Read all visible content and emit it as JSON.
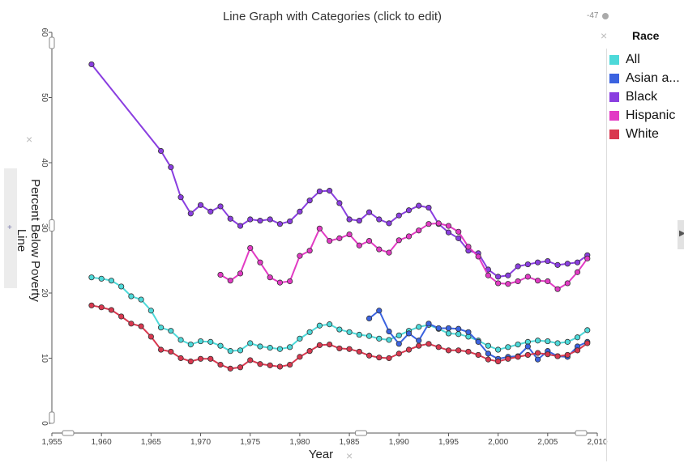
{
  "title": "Line Graph with Categories (click to edit)",
  "corner_value": "-47",
  "close_glyph": "×",
  "expand_glyph": "+",
  "right_arrow_glyph": "▶",
  "legend": {
    "title": "Race",
    "items": [
      {
        "label": "All",
        "color": "#4dd9d9"
      },
      {
        "label": "Asian a...",
        "color": "#3b63e0"
      },
      {
        "label": "Black",
        "color": "#8a3ee0"
      },
      {
        "label": "Hispanic",
        "color": "#e23bc4"
      },
      {
        "label": "White",
        "color": "#d9384f"
      }
    ]
  },
  "chart_data": {
    "type": "line",
    "title": "Line Graph with Categories (click to edit)",
    "xlabel": "Year",
    "ylabel": "Percent Below Poverty Line",
    "xlim": [
      1955,
      2010
    ],
    "ylim": [
      0,
      60
    ],
    "x_ticks": [
      "1,955",
      "1,960",
      "1,965",
      "1,970",
      "1,975",
      "1,980",
      "1,985",
      "1,990",
      "1,995",
      "2,000",
      "2,005",
      "2,010"
    ],
    "y_ticks": [
      "0",
      "10",
      "20",
      "30",
      "40",
      "50",
      "60"
    ],
    "legend_position": "right",
    "series": [
      {
        "name": "All",
        "color": "#4dd9d9",
        "points": [
          [
            1959,
            22.4
          ],
          [
            1960,
            22.2
          ],
          [
            1961,
            21.9
          ],
          [
            1962,
            21.0
          ],
          [
            1963,
            19.5
          ],
          [
            1964,
            19.0
          ],
          [
            1965,
            17.3
          ],
          [
            1966,
            14.7
          ],
          [
            1967,
            14.2
          ],
          [
            1968,
            12.8
          ],
          [
            1969,
            12.1
          ],
          [
            1970,
            12.6
          ],
          [
            1971,
            12.5
          ],
          [
            1972,
            11.9
          ],
          [
            1973,
            11.1
          ],
          [
            1974,
            11.2
          ],
          [
            1975,
            12.3
          ],
          [
            1976,
            11.8
          ],
          [
            1977,
            11.6
          ],
          [
            1978,
            11.4
          ],
          [
            1979,
            11.7
          ],
          [
            1980,
            13.0
          ],
          [
            1981,
            14.0
          ],
          [
            1982,
            15.0
          ],
          [
            1983,
            15.2
          ],
          [
            1984,
            14.4
          ],
          [
            1985,
            14.0
          ],
          [
            1986,
            13.6
          ],
          [
            1987,
            13.4
          ],
          [
            1988,
            13.0
          ],
          [
            1989,
            12.8
          ],
          [
            1990,
            13.5
          ],
          [
            1991,
            14.2
          ],
          [
            1992,
            14.8
          ],
          [
            1993,
            15.1
          ],
          [
            1994,
            14.5
          ],
          [
            1995,
            13.8
          ],
          [
            1996,
            13.7
          ],
          [
            1997,
            13.3
          ],
          [
            1998,
            12.7
          ],
          [
            1999,
            11.9
          ],
          [
            2000,
            11.3
          ],
          [
            2001,
            11.7
          ],
          [
            2002,
            12.1
          ],
          [
            2003,
            12.5
          ],
          [
            2004,
            12.7
          ],
          [
            2005,
            12.6
          ],
          [
            2006,
            12.3
          ],
          [
            2007,
            12.5
          ],
          [
            2008,
            13.2
          ],
          [
            2009,
            14.3
          ]
        ]
      },
      {
        "name": "Asian a...",
        "color": "#3b63e0",
        "points": [
          [
            1987,
            16.1
          ],
          [
            1988,
            17.3
          ],
          [
            1989,
            14.1
          ],
          [
            1990,
            12.2
          ],
          [
            1991,
            13.8
          ],
          [
            1992,
            12.7
          ],
          [
            1993,
            15.3
          ],
          [
            1994,
            14.6
          ],
          [
            1995,
            14.6
          ],
          [
            1996,
            14.5
          ],
          [
            1997,
            14.0
          ],
          [
            1998,
            12.5
          ],
          [
            1999,
            10.7
          ],
          [
            2000,
            9.9
          ],
          [
            2001,
            10.2
          ],
          [
            2002,
            10.3
          ],
          [
            2003,
            11.8
          ],
          [
            2004,
            9.8
          ],
          [
            2005,
            11.1
          ],
          [
            2006,
            10.3
          ],
          [
            2007,
            10.2
          ],
          [
            2008,
            11.8
          ],
          [
            2009,
            12.5
          ]
        ]
      },
      {
        "name": "Black",
        "color": "#8a3ee0",
        "points": [
          [
            1959,
            55.1
          ],
          [
            1966,
            41.8
          ],
          [
            1967,
            39.3
          ],
          [
            1968,
            34.7
          ],
          [
            1969,
            32.2
          ],
          [
            1970,
            33.5
          ],
          [
            1971,
            32.5
          ],
          [
            1972,
            33.3
          ],
          [
            1973,
            31.4
          ],
          [
            1974,
            30.3
          ],
          [
            1975,
            31.3
          ],
          [
            1976,
            31.1
          ],
          [
            1977,
            31.3
          ],
          [
            1978,
            30.6
          ],
          [
            1979,
            31.0
          ],
          [
            1980,
            32.5
          ],
          [
            1981,
            34.2
          ],
          [
            1982,
            35.6
          ],
          [
            1983,
            35.7
          ],
          [
            1984,
            33.8
          ],
          [
            1985,
            31.3
          ],
          [
            1986,
            31.1
          ],
          [
            1987,
            32.4
          ],
          [
            1988,
            31.3
          ],
          [
            1989,
            30.7
          ],
          [
            1990,
            31.9
          ],
          [
            1991,
            32.7
          ],
          [
            1992,
            33.4
          ],
          [
            1993,
            33.1
          ],
          [
            1994,
            30.6
          ],
          [
            1995,
            29.3
          ],
          [
            1996,
            28.4
          ],
          [
            1997,
            26.5
          ],
          [
            1998,
            26.1
          ],
          [
            1999,
            23.6
          ],
          [
            2000,
            22.5
          ],
          [
            2001,
            22.7
          ],
          [
            2002,
            24.1
          ],
          [
            2003,
            24.4
          ],
          [
            2004,
            24.7
          ],
          [
            2005,
            24.9
          ],
          [
            2006,
            24.3
          ],
          [
            2007,
            24.5
          ],
          [
            2008,
            24.7
          ],
          [
            2009,
            25.8
          ]
        ]
      },
      {
        "name": "Hispanic",
        "color": "#e23bc4",
        "points": [
          [
            1972,
            22.8
          ],
          [
            1973,
            21.9
          ],
          [
            1974,
            23.0
          ],
          [
            1975,
            26.9
          ],
          [
            1976,
            24.7
          ],
          [
            1977,
            22.4
          ],
          [
            1978,
            21.6
          ],
          [
            1979,
            21.8
          ],
          [
            1980,
            25.7
          ],
          [
            1981,
            26.5
          ],
          [
            1982,
            29.9
          ],
          [
            1983,
            28.0
          ],
          [
            1984,
            28.4
          ],
          [
            1985,
            29.0
          ],
          [
            1986,
            27.3
          ],
          [
            1987,
            28.0
          ],
          [
            1988,
            26.7
          ],
          [
            1989,
            26.2
          ],
          [
            1990,
            28.1
          ],
          [
            1991,
            28.7
          ],
          [
            1992,
            29.6
          ],
          [
            1993,
            30.6
          ],
          [
            1994,
            30.7
          ],
          [
            1995,
            30.3
          ],
          [
            1996,
            29.4
          ],
          [
            1997,
            27.1
          ],
          [
            1998,
            25.6
          ],
          [
            1999,
            22.7
          ],
          [
            2000,
            21.5
          ],
          [
            2001,
            21.4
          ],
          [
            2002,
            21.8
          ],
          [
            2003,
            22.5
          ],
          [
            2004,
            21.9
          ],
          [
            2005,
            21.8
          ],
          [
            2006,
            20.6
          ],
          [
            2007,
            21.5
          ],
          [
            2008,
            23.2
          ],
          [
            2009,
            25.3
          ]
        ]
      },
      {
        "name": "White",
        "color": "#d9384f",
        "points": [
          [
            1959,
            18.1
          ],
          [
            1960,
            17.8
          ],
          [
            1961,
            17.4
          ],
          [
            1962,
            16.4
          ],
          [
            1963,
            15.3
          ],
          [
            1964,
            14.9
          ],
          [
            1965,
            13.3
          ],
          [
            1966,
            11.3
          ],
          [
            1967,
            11.0
          ],
          [
            1968,
            10.0
          ],
          [
            1969,
            9.5
          ],
          [
            1970,
            9.9
          ],
          [
            1971,
            9.9
          ],
          [
            1972,
            9.0
          ],
          [
            1973,
            8.4
          ],
          [
            1974,
            8.6
          ],
          [
            1975,
            9.7
          ],
          [
            1976,
            9.1
          ],
          [
            1977,
            8.9
          ],
          [
            1978,
            8.7
          ],
          [
            1979,
            9.0
          ],
          [
            1980,
            10.2
          ],
          [
            1981,
            11.1
          ],
          [
            1982,
            12.0
          ],
          [
            1983,
            12.1
          ],
          [
            1984,
            11.5
          ],
          [
            1985,
            11.4
          ],
          [
            1986,
            11.0
          ],
          [
            1987,
            10.4
          ],
          [
            1988,
            10.1
          ],
          [
            1989,
            10.0
          ],
          [
            1990,
            10.7
          ],
          [
            1991,
            11.3
          ],
          [
            1992,
            11.9
          ],
          [
            1993,
            12.2
          ],
          [
            1994,
            11.7
          ],
          [
            1995,
            11.2
          ],
          [
            1996,
            11.2
          ],
          [
            1997,
            11.0
          ],
          [
            1998,
            10.5
          ],
          [
            1999,
            9.8
          ],
          [
            2000,
            9.5
          ],
          [
            2001,
            9.9
          ],
          [
            2002,
            10.2
          ],
          [
            2003,
            10.5
          ],
          [
            2004,
            10.8
          ],
          [
            2005,
            10.6
          ],
          [
            2006,
            10.3
          ],
          [
            2007,
            10.5
          ],
          [
            2008,
            11.2
          ],
          [
            2009,
            12.3
          ]
        ]
      }
    ]
  }
}
